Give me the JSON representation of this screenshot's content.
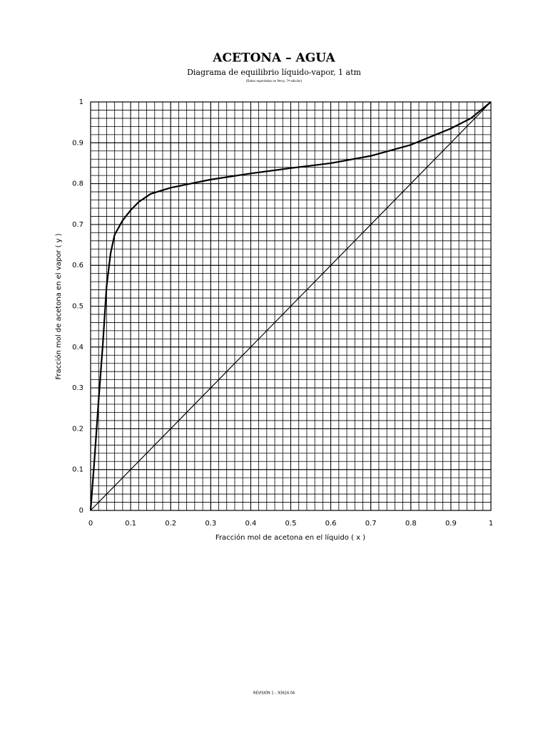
{
  "chart_data": {
    "type": "line",
    "title": "ACETONA – AGUA",
    "subtitle": "Diagrama de equilibrio líquido-vapor, 1 atm",
    "note": "(Datos reportados en Perry, 7ª edición)",
    "xlabel": "Fracción mol de acetona en el líquido ( x )",
    "ylabel": "Fracción mol de acetona en el vapor ( y )",
    "footer": "REVISIÓN 1 – 93624.04",
    "xlim": [
      0,
      1
    ],
    "ylim": [
      0,
      1
    ],
    "xticks": [
      0,
      0.1,
      0.2,
      0.3,
      0.4,
      0.5,
      0.6,
      0.7,
      0.8,
      0.9,
      1
    ],
    "yticks": [
      0,
      0.1,
      0.2,
      0.3,
      0.4,
      0.5,
      0.6,
      0.7,
      0.8,
      0.9,
      1
    ],
    "grid": true,
    "minor_grid_step": 0.02,
    "series": [
      {
        "color": "#000000",
        "width": 2.2,
        "x": [
          0,
          0.01,
          0.02,
          0.03,
          0.04,
          0.05,
          0.06,
          0.08,
          0.1,
          0.12,
          0.15,
          0.2,
          0.3,
          0.4,
          0.5,
          0.6,
          0.7,
          0.8,
          0.9,
          0.95,
          1
        ],
        "values": [
          0,
          0.13,
          0.27,
          0.4,
          0.55,
          0.63,
          0.675,
          0.71,
          0.735,
          0.755,
          0.775,
          0.79,
          0.81,
          0.825,
          0.838,
          0.85,
          0.868,
          0.895,
          0.935,
          0.96,
          1
        ]
      },
      {
        "color": "#000000",
        "width": 1.2,
        "x": [
          0,
          1
        ],
        "values": [
          0,
          1
        ]
      }
    ]
  }
}
